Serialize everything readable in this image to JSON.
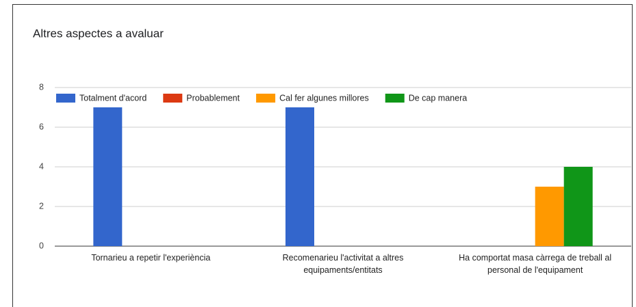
{
  "chart_data": {
    "type": "bar",
    "title": "Altres aspectes a avaluar",
    "categories": [
      "Tornarieu a repetir l'experiència",
      "Recomenarieu l'activitat a altres equipaments/entitats",
      "Ha comportat masa càrrega de treball al personal de l'equipament"
    ],
    "series": [
      {
        "name": "Totalment d'acord",
        "color": "#3366cc",
        "values": [
          7,
          7,
          0
        ]
      },
      {
        "name": "Probablement",
        "color": "#dc3912",
        "values": [
          0,
          0,
          0
        ]
      },
      {
        "name": "Cal fer algunes millores",
        "color": "#ff9900",
        "values": [
          0,
          0,
          3
        ]
      },
      {
        "name": "De cap manera",
        "color": "#109618",
        "values": [
          0,
          0,
          4
        ]
      }
    ],
    "ylim": [
      0,
      8
    ],
    "yticks": [
      0,
      2,
      4,
      6,
      8
    ],
    "grid": true,
    "legend": "top"
  }
}
